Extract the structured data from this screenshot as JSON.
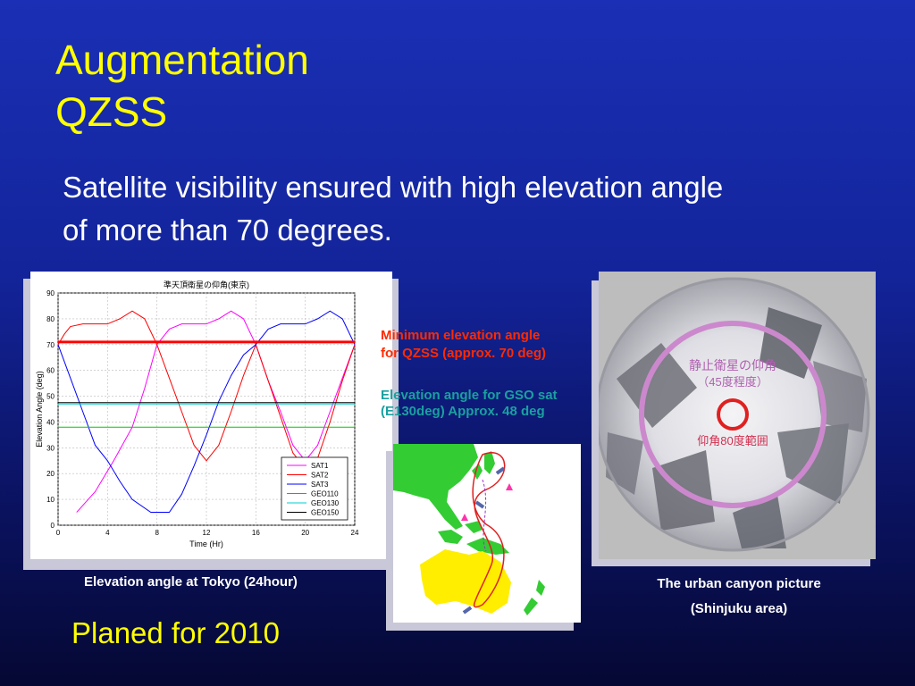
{
  "slide": {
    "title_line1": "Augmentation",
    "title_line2": "QZSS",
    "subtitle_line1": "Satellite visibility ensured with high elevation angle",
    "subtitle_line2": "of more than 70 degrees.",
    "footer": "Planed for 2010"
  },
  "annotations": {
    "min_elev_line1": "Minimum elevation angle",
    "min_elev_line2": "for QZSS  (approx. 70 deg)",
    "gso_line1": "Elevation angle for GSO sat",
    "gso_line2": "(E130deg)  Approx. 48 deg",
    "min_color": "#ff2a00",
    "gso_color": "#1aa0a0"
  },
  "captions": {
    "chart": "Elevation angle at Tokyo (24hour)",
    "photo_line1": "The urban canyon picture",
    "photo_line2": "(Shinjuku area)"
  },
  "photo": {
    "label_line1": "静止衛星の仰角",
    "label_line2": "（45度程度）",
    "label_line3": "仰角80度範囲"
  },
  "map": {
    "icon": "qzss-orbit-ground-track-map"
  },
  "chart_data": {
    "type": "line",
    "title": "準天頂衛星の仰角(東京)",
    "xlabel": "Time (Hr)",
    "ylabel": "Elevation Angle (deg)",
    "xlim": [
      0,
      24
    ],
    "ylim": [
      0,
      90
    ],
    "xticks": [
      0,
      4,
      8,
      12,
      16,
      20,
      24
    ],
    "yticks": [
      0,
      10,
      20,
      30,
      40,
      50,
      60,
      70,
      80,
      90
    ],
    "grid": true,
    "legend_position": "bottom-right",
    "series": [
      {
        "name": "SAT1",
        "color": "#ff00ff",
        "x": [
          1.5,
          3,
          4.5,
          6,
          7,
          8,
          9,
          10,
          11,
          12,
          13,
          14,
          15,
          16,
          17,
          18,
          19,
          20,
          21,
          22,
          23,
          24
        ],
        "y": [
          5,
          13,
          25,
          38,
          53,
          70,
          76,
          78,
          78,
          78,
          80,
          83,
          80,
          70,
          56,
          44,
          31,
          25,
          31,
          44,
          57,
          70
        ]
      },
      {
        "name": "SAT2",
        "color": "#ff0000",
        "x": [
          0,
          0.5,
          1,
          2,
          3,
          4,
          5,
          6,
          7,
          8,
          9,
          10,
          11,
          12,
          13,
          14,
          15,
          16,
          17,
          18,
          19,
          20,
          21,
          22,
          23,
          24
        ],
        "y": [
          70,
          74,
          77,
          78,
          78,
          78,
          80,
          83,
          80,
          70,
          57,
          44,
          31,
          25,
          31,
          44,
          58,
          70,
          56,
          42,
          28,
          22,
          26,
          40,
          56,
          70
        ]
      },
      {
        "name": "SAT3",
        "color": "#0000ff",
        "x": [
          0,
          1,
          2,
          3,
          4,
          5,
          6,
          7.5,
          9,
          10,
          11,
          12,
          13,
          14,
          15,
          16,
          17,
          18,
          19,
          20,
          21,
          22,
          23,
          24
        ],
        "y": [
          70,
          57,
          44,
          31,
          25,
          17,
          10,
          5,
          5,
          12,
          23,
          35,
          48,
          58,
          66,
          70,
          76,
          78,
          78,
          78,
          80,
          83,
          80,
          70
        ]
      },
      {
        "name": "GEO110",
        "color": "#00cc00",
        "x": [
          0,
          24
        ],
        "y": [
          38,
          38
        ]
      },
      {
        "name": "GEO130",
        "color": "#00cccc",
        "x": [
          0,
          24
        ],
        "y": [
          47,
          47
        ]
      },
      {
        "name": "GEO150",
        "color": "#000000",
        "x": [
          0,
          24
        ],
        "y": [
          47.5,
          47.5
        ]
      }
    ],
    "threshold": {
      "y": 71,
      "color": "#ff0000"
    }
  }
}
